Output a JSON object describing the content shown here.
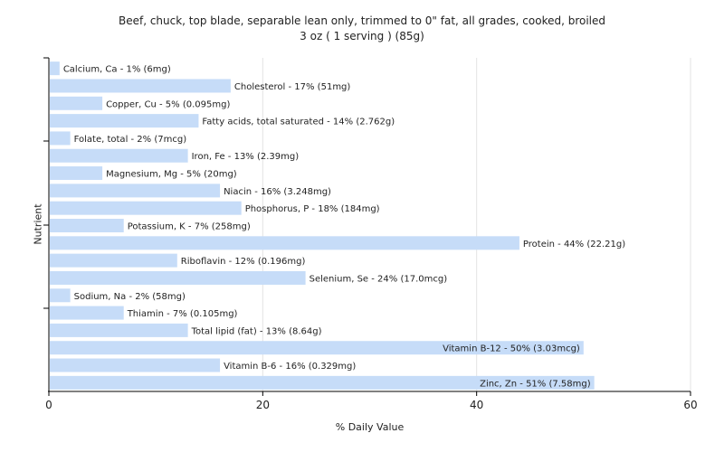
{
  "title": "Beef, chuck, top blade, separable lean only, trimmed to 0\" fat, all grades, cooked, broiled",
  "subtitle": "3 oz ( 1 serving ) (85g)",
  "chart_data": {
    "type": "bar",
    "orientation": "horizontal",
    "xlabel": "% Daily Value",
    "ylabel": "Nutrient",
    "xlim": [
      0,
      60
    ],
    "xticks": [
      0,
      20,
      40,
      60
    ],
    "grid": true,
    "bar_color": "#c6dcf8",
    "categories": [
      "Calcium, Ca",
      "Cholesterol",
      "Copper, Cu",
      "Fatty acids, total saturated",
      "Folate, total",
      "Iron, Fe",
      "Magnesium, Mg",
      "Niacin",
      "Phosphorus, P",
      "Potassium, K",
      "Protein",
      "Riboflavin",
      "Selenium, Se",
      "Sodium, Na",
      "Thiamin",
      "Total lipid (fat)",
      "Vitamin B-12",
      "Vitamin B-6",
      "Zinc, Zn"
    ],
    "values": [
      1,
      17,
      5,
      14,
      2,
      13,
      5,
      16,
      18,
      7,
      44,
      12,
      24,
      2,
      7,
      13,
      50,
      16,
      51
    ],
    "labels": [
      "Calcium, Ca - 1% (6mg)",
      "Cholesterol - 17% (51mg)",
      "Copper, Cu - 5% (0.095mg)",
      "Fatty acids, total saturated - 14% (2.762g)",
      "Folate, total - 2% (7mcg)",
      "Iron, Fe - 13% (2.39mg)",
      "Magnesium, Mg - 5% (20mg)",
      "Niacin - 16% (3.248mg)",
      "Phosphorus, P - 18% (184mg)",
      "Potassium, K - 7% (258mg)",
      "Protein - 44% (22.21g)",
      "Riboflavin - 12% (0.196mg)",
      "Selenium, Se - 24% (17.0mcg)",
      "Sodium, Na - 2% (58mg)",
      "Thiamin - 7% (0.105mg)",
      "Total lipid (fat) - 13% (8.64g)",
      "Vitamin B-12 - 50% (3.03mcg)",
      "Vitamin B-6 - 16% (0.329mg)",
      "Zinc, Zn - 51% (7.58mg)"
    ]
  }
}
